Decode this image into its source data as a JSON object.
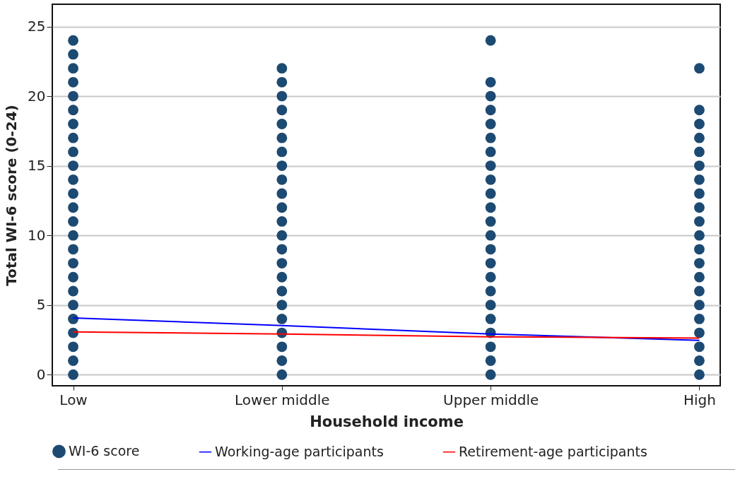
{
  "chart_data": {
    "type": "line",
    "xlabel": "Household income",
    "ylabel": "Total WI-6 score (0-24)",
    "categories": [
      "Low",
      "Lower middle",
      "Upper middle",
      "High"
    ],
    "ylim": [
      -0.8,
      26.6
    ],
    "yticks": [
      0,
      5,
      10,
      15,
      20,
      25
    ],
    "grid": "y",
    "legend": "bottom",
    "series": [
      {
        "name": "WI-6 score",
        "type": "scatter",
        "marker": "circle",
        "color": "#1c4a72",
        "x": [
          "Low",
          "Low",
          "Low",
          "Low",
          "Low",
          "Low",
          "Low",
          "Low",
          "Low",
          "Low",
          "Low",
          "Low",
          "Low",
          "Low",
          "Low",
          "Low",
          "Low",
          "Low",
          "Low",
          "Low",
          "Low",
          "Low",
          "Low",
          "Low",
          "Low",
          "Lower middle",
          "Lower middle",
          "Lower middle",
          "Lower middle",
          "Lower middle",
          "Lower middle",
          "Lower middle",
          "Lower middle",
          "Lower middle",
          "Lower middle",
          "Lower middle",
          "Lower middle",
          "Lower middle",
          "Lower middle",
          "Lower middle",
          "Lower middle",
          "Lower middle",
          "Lower middle",
          "Lower middle",
          "Lower middle",
          "Lower middle",
          "Lower middle",
          "Lower middle",
          "Upper middle",
          "Upper middle",
          "Upper middle",
          "Upper middle",
          "Upper middle",
          "Upper middle",
          "Upper middle",
          "Upper middle",
          "Upper middle",
          "Upper middle",
          "Upper middle",
          "Upper middle",
          "Upper middle",
          "Upper middle",
          "Upper middle",
          "Upper middle",
          "Upper middle",
          "Upper middle",
          "Upper middle",
          "Upper middle",
          "Upper middle",
          "Upper middle",
          "Upper middle",
          "High",
          "High",
          "High",
          "High",
          "High",
          "High",
          "High",
          "High",
          "High",
          "High",
          "High",
          "High",
          "High",
          "High",
          "High",
          "High",
          "High",
          "High",
          "High",
          "High",
          "High"
        ],
        "values": [
          0,
          1,
          2,
          3,
          4,
          5,
          6,
          7,
          8,
          9,
          10,
          11,
          12,
          13,
          14,
          15,
          16,
          17,
          18,
          19,
          20,
          21,
          22,
          23,
          24,
          0,
          1,
          2,
          3,
          4,
          5,
          6,
          7,
          8,
          9,
          10,
          11,
          12,
          13,
          14,
          15,
          16,
          17,
          18,
          19,
          20,
          21,
          22,
          0,
          1,
          2,
          3,
          4,
          5,
          6,
          7,
          8,
          9,
          10,
          11,
          12,
          13,
          14,
          15,
          16,
          17,
          18,
          19,
          20,
          21,
          24,
          0,
          1,
          2,
          3,
          4,
          5,
          6,
          7,
          8,
          9,
          10,
          11,
          12,
          13,
          14,
          15,
          16,
          17,
          18,
          19,
          22
        ]
      },
      {
        "name": "Working-age participants",
        "marker": "none",
        "color": "#0000ff",
        "values": [
          4.07,
          3.52,
          2.92,
          2.46
        ]
      },
      {
        "name": "Retirement-age participants",
        "marker": "none",
        "color": "#ff0000",
        "values": [
          3.07,
          2.92,
          2.72,
          2.62
        ]
      }
    ]
  }
}
